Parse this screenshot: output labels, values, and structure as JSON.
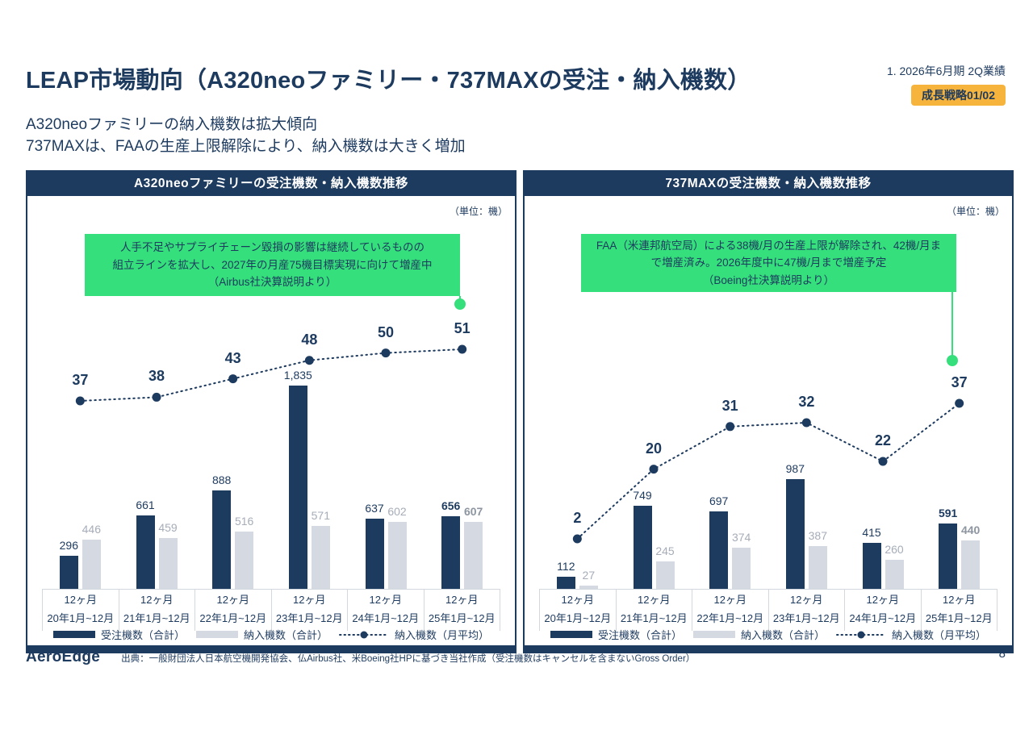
{
  "slide": {
    "title": "LEAP市場動向（A320neoファミリー・737MAXの受注・納入機数）",
    "meta": "1. 2026年6月期 2Q業績",
    "badge": "成長戦略01/02",
    "subtitle_line1": "A320neoファミリーの納入機数は拡大傾向",
    "subtitle_line2": "737MAXは、FAAの生産上限解除により、納入機数は大きく増加",
    "logo": "AeroEdge",
    "source": "出典：一般財団法人日本航空機開発協会、仏Airbus社、米Boeing社HPに基づき当社作成（受注機数はキャンセルを含まないGross Order）",
    "page_number": "8"
  },
  "colors": {
    "navy": "#1d3a5f",
    "gray_bar": "#d4d9e2",
    "gray_label": "#a6adb8",
    "gray_label_bold": "#8d95a1",
    "green": "#35e07c",
    "orange": "#f7b43c"
  },
  "chart_data": [
    {
      "type": "bar",
      "panel_title": "A320neoファミリーの受注機数・納入機数推移",
      "unit_label": "（単位：機）",
      "callout_lines": [
        "人手不足やサプライチェーン毀損の影響は継続しているものの",
        "組立ラインを拡大し、2027年の月産75機目標実現に向けて増産中",
        "（Airbus社決算説明より）"
      ],
      "categories": [
        {
          "period": "12ヶ月",
          "range": "20年1月~12月"
        },
        {
          "period": "12ヶ月",
          "range": "21年1月~12月"
        },
        {
          "period": "12ヶ月",
          "range": "22年1月~12月"
        },
        {
          "period": "12ヶ月",
          "range": "23年1月~12月"
        },
        {
          "period": "12ヶ月",
          "range": "24年1月~12月"
        },
        {
          "period": "12ヶ月",
          "range": "25年1月~12月"
        }
      ],
      "series": [
        {
          "name": "受注機数（合計）",
          "kind": "bar",
          "role": "orders",
          "values": [
            296,
            661,
            888,
            1835,
            637,
            656
          ],
          "labels": [
            "296",
            "661",
            "888",
            "1,835",
            "637",
            "656"
          ]
        },
        {
          "name": "納入機数（合計）",
          "kind": "bar",
          "role": "deliveries",
          "values": [
            446,
            459,
            516,
            571,
            602,
            607
          ],
          "labels": [
            "446",
            "459",
            "516",
            "571",
            "602",
            "607"
          ]
        },
        {
          "name": "納入機数（月平均）",
          "kind": "line",
          "role": "monthly-average",
          "values": [
            37,
            38,
            43,
            48,
            50,
            51
          ],
          "labels": [
            "37",
            "38",
            "43",
            "48",
            "50",
            "51"
          ]
        }
      ],
      "grid": false,
      "legend_position": "bottom"
    },
    {
      "type": "bar",
      "panel_title": "737MAXの受注機数・納入機数推移",
      "unit_label": "（単位：機）",
      "callout_lines": [
        "FAA（米連邦航空局）による38機/月の生産上限が解除され、42機/月ま",
        "で増産済み。2026年度中に47機/月まで増産予定",
        "（Boeing社決算説明より）"
      ],
      "categories": [
        {
          "period": "12ヶ月",
          "range": "20年1月~12月"
        },
        {
          "period": "12ヶ月",
          "range": "21年1月~12月"
        },
        {
          "period": "12ヶ月",
          "range": "22年1月~12月"
        },
        {
          "period": "12ヶ月",
          "range": "23年1月~12月"
        },
        {
          "period": "12ヶ月",
          "range": "24年1月~12月"
        },
        {
          "period": "12ヶ月",
          "range": "25年1月~12月"
        }
      ],
      "series": [
        {
          "name": "受注機数（合計）",
          "kind": "bar",
          "role": "orders",
          "values": [
            112,
            749,
            697,
            987,
            415,
            591
          ],
          "labels": [
            "112",
            "749",
            "697",
            "987",
            "415",
            "591"
          ]
        },
        {
          "name": "納入機数（合計）",
          "kind": "bar",
          "role": "deliveries",
          "values": [
            27,
            245,
            374,
            387,
            260,
            440
          ],
          "labels": [
            "27",
            "245",
            "374",
            "387",
            "260",
            "440"
          ]
        },
        {
          "name": "納入機数（月平均）",
          "kind": "line",
          "role": "monthly-average",
          "values": [
            2,
            20,
            31,
            32,
            22,
            37
          ],
          "labels": [
            "2",
            "20",
            "31",
            "32",
            "22",
            "37"
          ]
        }
      ],
      "grid": false,
      "legend_position": "bottom"
    }
  ]
}
